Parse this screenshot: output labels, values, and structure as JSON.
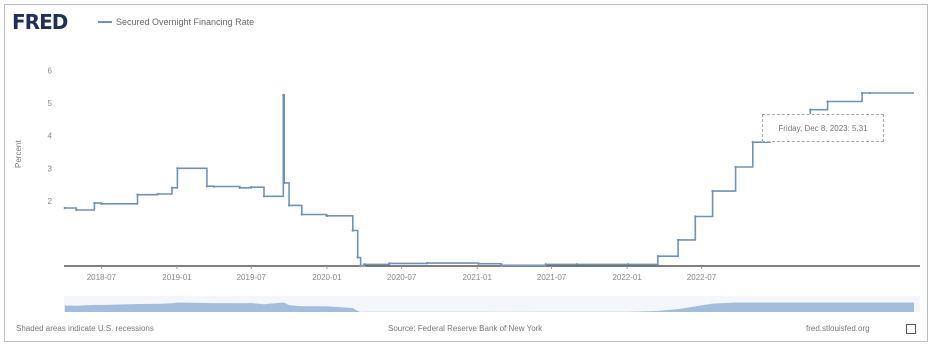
{
  "header": {
    "logo": "FRED",
    "legend_series": "Secured Overnight Financing Rate",
    "series_color": "#6e92b8"
  },
  "chart_data": {
    "type": "line",
    "title": "",
    "ylabel": "Percent",
    "ylim": [
      0,
      7
    ],
    "yticks": [
      2,
      3,
      4,
      5,
      6
    ],
    "xticks": [
      "2018-07",
      "2019-01",
      "2019-07",
      "2020-01",
      "2020-07",
      "2021-01",
      "2021-07",
      "2022-01",
      "2022-07"
    ],
    "grid": false,
    "legend": "top-left",
    "series": [
      {
        "name": "Secured Overnight Financing Rate",
        "x": [
          "2018-04-03",
          "2018-05-01",
          "2018-06-14",
          "2018-07-01",
          "2018-09-27",
          "2018-11-15",
          "2018-12-20",
          "2019-01-02",
          "2019-03-15",
          "2019-04-01",
          "2019-06-03",
          "2019-07-01",
          "2019-08-01",
          "2019-09-17",
          "2019-09-19",
          "2019-10-01",
          "2019-11-01",
          "2019-12-31",
          "2020-01-02",
          "2020-03-04",
          "2020-03-16",
          "2020-03-23",
          "2020-04-01",
          "2020-06-01",
          "2020-09-01",
          "2021-01-04",
          "2021-03-01",
          "2021-06-17",
          "2021-09-01",
          "2022-01-03",
          "2022-03-17",
          "2022-05-05",
          "2022-06-16",
          "2022-07-28",
          "2022-09-22",
          "2022-11-03",
          "2022-12-15",
          "2023-02-02",
          "2023-03-23",
          "2023-05-04",
          "2023-07-27",
          "2023-08-15"
        ],
        "values": [
          1.78,
          1.72,
          1.93,
          1.91,
          2.19,
          2.21,
          2.4,
          3.0,
          2.45,
          2.44,
          2.4,
          2.42,
          2.14,
          5.25,
          2.55,
          1.86,
          1.58,
          1.55,
          1.54,
          1.09,
          0.26,
          0.01,
          0.05,
          0.08,
          0.09,
          0.07,
          0.02,
          0.05,
          0.05,
          0.05,
          0.3,
          0.8,
          1.52,
          2.3,
          3.04,
          3.8,
          4.3,
          4.55,
          4.8,
          5.05,
          5.31,
          5.31
        ]
      }
    ],
    "tooltip": "Friday, Dec 8, 2023: 5.31"
  },
  "footer": {
    "left": "Shaded areas indicate U.S. recessions",
    "middle": "Source: Federal Reserve Bank of New York",
    "right": "fred.stlouisfed.org"
  }
}
